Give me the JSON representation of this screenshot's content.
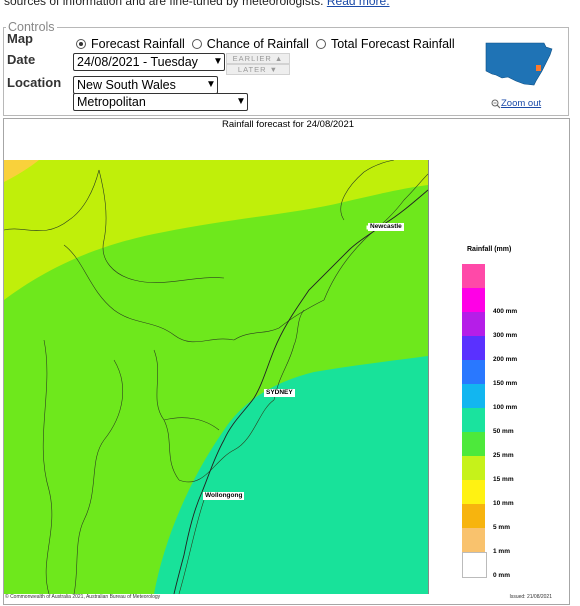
{
  "intro": {
    "text": "sources of information and are fine-tuned by meteorologists.",
    "read_more": "Read more."
  },
  "controls": {
    "legend": "Controls",
    "map_label": "Map",
    "date_label": "Date",
    "location_label": "Location",
    "radios": [
      {
        "label": "Forecast Rainfall",
        "checked": true
      },
      {
        "label": "Chance of Rainfall",
        "checked": false
      },
      {
        "label": "Total Forecast Rainfall",
        "checked": false
      }
    ],
    "date_value": "24/08/2021 - Tuesday",
    "earlier": "EARLIER",
    "later": "LATER",
    "state_value": "New South Wales",
    "region_value": "Metropolitan",
    "zoom_out": "Zoom out"
  },
  "map": {
    "title": "Rainfall forecast for 24/08/2021",
    "places": [
      "Newcastle",
      "SYDNEY",
      "Wollongong"
    ],
    "credit": "© Commonwealth of Australia 2021, Australian Bureau of Meteorology",
    "issued": "Issued: 21/08/2021",
    "colors": {
      "light": "#c0ef0a",
      "mid": "#6ee81c",
      "coastal": "#18e29a"
    }
  },
  "legend": {
    "title": "Rainfall (mm)",
    "items": [
      {
        "label": "",
        "color": "#ff49a8"
      },
      {
        "label": "400 mm",
        "color": "#ff00e6"
      },
      {
        "label": "300 mm",
        "color": "#b51ee8"
      },
      {
        "label": "200 mm",
        "color": "#5a31ff"
      },
      {
        "label": "150 mm",
        "color": "#2978ff"
      },
      {
        "label": "100 mm",
        "color": "#12b6f0"
      },
      {
        "label": "50 mm",
        "color": "#1ae39e"
      },
      {
        "label": "25 mm",
        "color": "#4de93b"
      },
      {
        "label": "15 mm",
        "color": "#c6f21a"
      },
      {
        "label": "10 mm",
        "color": "#fff212"
      },
      {
        "label": "5 mm",
        "color": "#f7b40e"
      },
      {
        "label": "1 mm",
        "color": "#f9c26d"
      },
      {
        "label": "0 mm",
        "color": "#ffffff"
      }
    ]
  }
}
